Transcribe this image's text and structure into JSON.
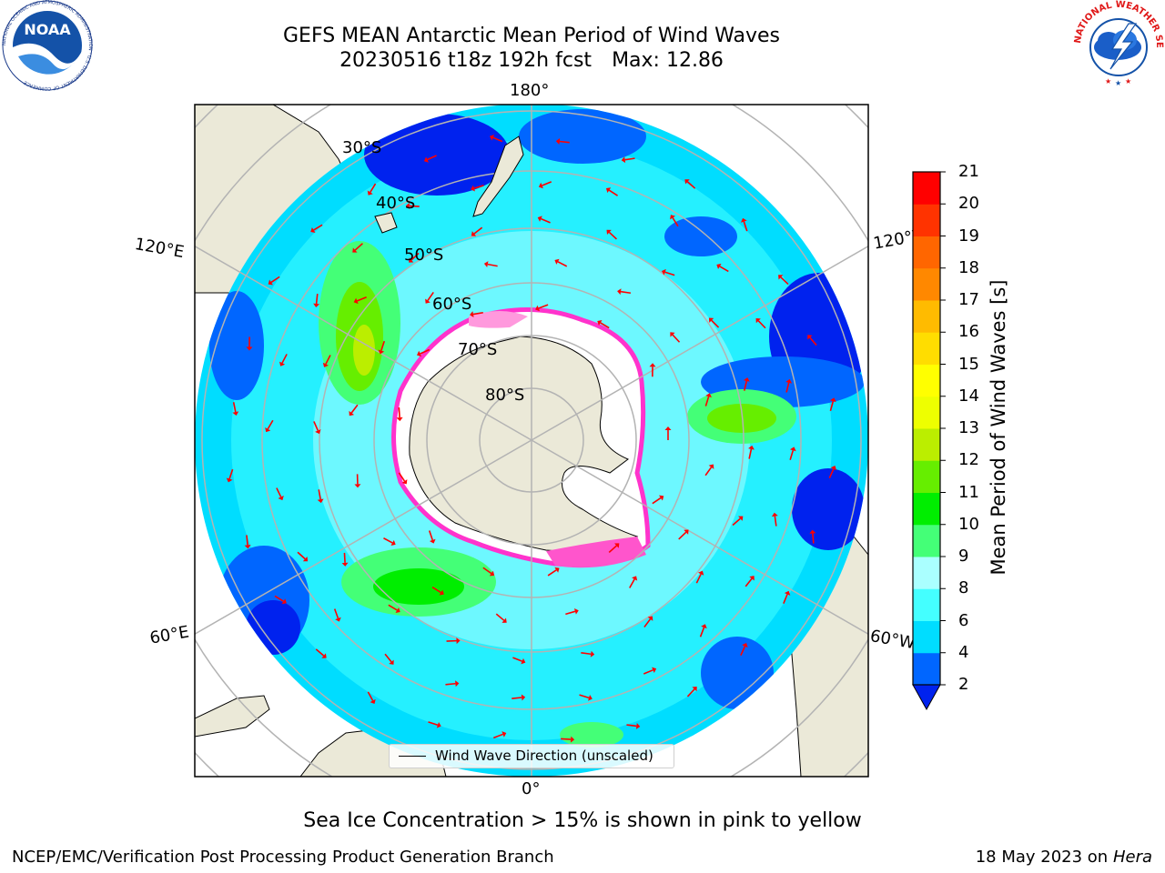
{
  "title": {
    "line1": "GEFS MEAN Antarctic Mean Period of Wind Waves",
    "line2_run": "20230516 t18z 192h fcst",
    "line2_max": "Max: 12.86"
  },
  "map": {
    "projection": "south-polar-stereographic",
    "longitude_labels": {
      "top": "180°",
      "bottom": "0°",
      "upper_left": "120°E",
      "lower_left": "60°E",
      "upper_right": "120°W",
      "lower_right": "60°W"
    },
    "latitude_labels": [
      "30°S",
      "40°S",
      "50°S",
      "60°S",
      "70°S",
      "80°S"
    ],
    "colors": {
      "land": "#ebe9d8",
      "gridline": "#b3b3b3",
      "sea_ice": "#ff33cc",
      "arrow": "#ff0000"
    }
  },
  "legend": {
    "label": "Wind Wave Direction (unscaled)"
  },
  "colorbar": {
    "label": "Mean Period of Wind Waves [s]",
    "ticks": [
      "2",
      "4",
      "6",
      "8",
      "9",
      "10",
      "11",
      "12",
      "13",
      "14",
      "15",
      "16",
      "17",
      "18",
      "19",
      "20",
      "21"
    ],
    "colors": [
      "#0066ff",
      "#00ddff",
      "#44ffff",
      "#aaffff",
      "#44ff77",
      "#00ee00",
      "#66ee00",
      "#bbee00",
      "#eeff00",
      "#ffff00",
      "#ffdd00",
      "#ffbb00",
      "#ff8800",
      "#ff6600",
      "#ff3300",
      "#ff0000"
    ],
    "extend_below_color": "#0022ee"
  },
  "caption": "Sea Ice Concentration > 15% is shown in pink to yellow",
  "footer": {
    "left": "NCEP/EMC/Verification Post Processing Product Generation Branch",
    "right_date": "18 May 2023 on",
    "right_host": "Hera"
  },
  "logos": {
    "left": {
      "name": "NOAA",
      "ring_text": "NATIONAL OCEANIC AND ATMOSPHERIC ADMINISTRATION · U.S. DEPARTMENT OF COMMERCE"
    },
    "right": {
      "ring_text": "NATIONAL WEATHER SERVICE"
    }
  }
}
